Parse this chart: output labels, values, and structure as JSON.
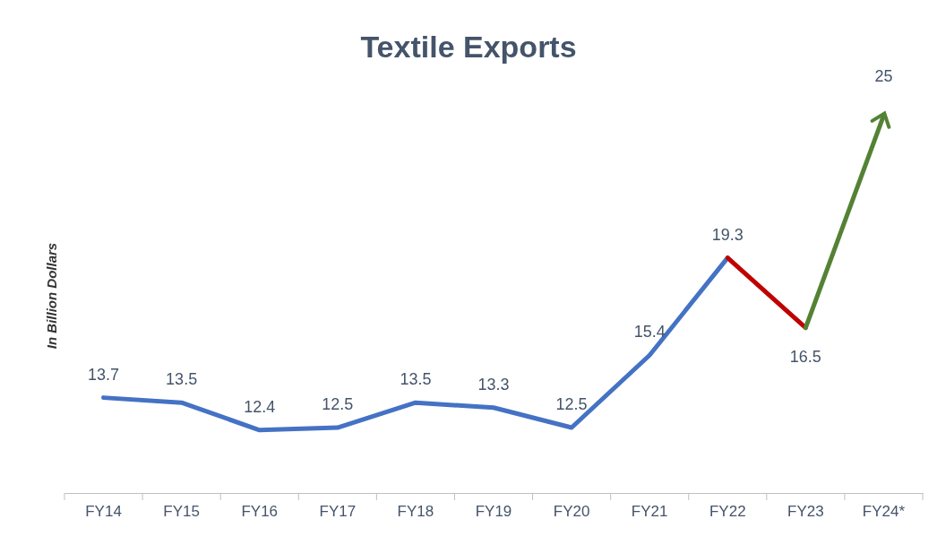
{
  "chart_data": {
    "type": "line",
    "title": "Textile Exports",
    "ylabel": "In Billion Dollars",
    "categories": [
      "FY14",
      "FY15",
      "FY16",
      "FY17",
      "FY18",
      "FY19",
      "FY20",
      "FY21",
      "FY22",
      "FY23",
      "FY24*"
    ],
    "series": [
      {
        "color": "#4472c4",
        "values": [
          13.7,
          13.5,
          12.4,
          12.5,
          13.5,
          13.3,
          12.5,
          15.4,
          19.3,
          null,
          null
        ],
        "value_labels": [
          "13.7",
          "13.5",
          "12.4",
          "12.5",
          "13.5",
          "13.3",
          "12.5",
          "15.4",
          "19.3",
          null,
          null
        ]
      },
      {
        "color": "#c00000",
        "values": [
          null,
          null,
          null,
          null,
          null,
          null,
          null,
          null,
          19.3,
          16.5,
          null
        ],
        "value_labels": [
          null,
          null,
          null,
          null,
          null,
          null,
          null,
          null,
          null,
          "16.5",
          null
        ]
      },
      {
        "color": "#548235",
        "values": [
          null,
          null,
          null,
          null,
          null,
          null,
          null,
          null,
          null,
          16.5,
          25
        ],
        "value_labels": [
          null,
          null,
          null,
          null,
          null,
          null,
          null,
          null,
          null,
          null,
          "25"
        ]
      }
    ]
  }
}
